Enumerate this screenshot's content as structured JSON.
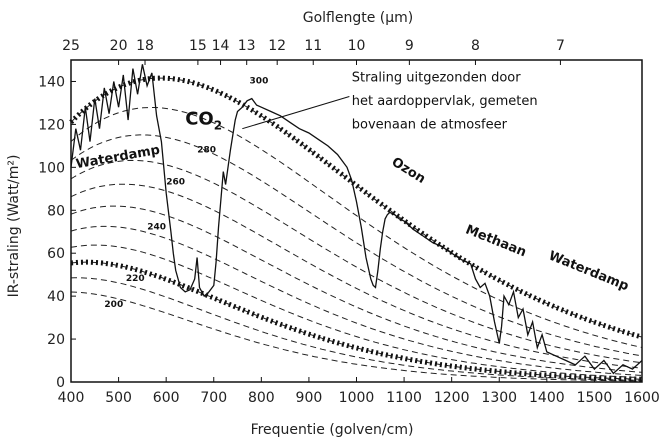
{
  "chart_data": {
    "type": "line",
    "xlabel": "Frequentie (golven/cm)",
    "ylabel": "IR-straling (Watt/m²)",
    "top_axis_label": "Golflengte (µm)",
    "xlim": [
      400,
      1600
    ],
    "ylim": [
      0,
      150
    ],
    "x_ticks": [
      400,
      500,
      600,
      700,
      800,
      900,
      1000,
      1100,
      1200,
      1300,
      1400,
      1500,
      1600
    ],
    "y_ticks": [
      0,
      20,
      40,
      60,
      80,
      100,
      120,
      140
    ],
    "top_ticks": [
      25,
      20,
      18,
      15,
      14,
      13,
      12,
      11,
      10,
      9,
      8,
      7
    ],
    "grid": false,
    "reference_curves": {
      "style": "dashed",
      "temperatures": [
        200,
        210,
        220,
        230,
        240,
        250,
        260,
        270,
        280,
        290,
        300
      ],
      "labeled": [
        {
          "label": "200",
          "x": 490,
          "y": 35
        },
        {
          "label": "220",
          "x": 535,
          "y": 47
        },
        {
          "label": "240",
          "x": 580,
          "y": 71
        },
        {
          "label": "260",
          "x": 620,
          "y": 92
        },
        {
          "label": "280",
          "x": 685,
          "y": 107
        },
        {
          "label": "300",
          "x": 795,
          "y": 139
        }
      ],
      "bold_dotted": [
        220,
        300
      ]
    },
    "spectrum": {
      "name": "Straling uitgezonden door het aardoppervlak, gemeten bovenaan de atmosfeer",
      "x": [
        400,
        410,
        420,
        430,
        440,
        450,
        460,
        470,
        480,
        490,
        500,
        510,
        520,
        530,
        540,
        550,
        560,
        570,
        580,
        590,
        600,
        610,
        615,
        620,
        625,
        630,
        640,
        650,
        660,
        665,
        670,
        680,
        690,
        700,
        705,
        710,
        715,
        720,
        725,
        730,
        735,
        740,
        745,
        750,
        760,
        770,
        780,
        790,
        800,
        820,
        840,
        860,
        880,
        900,
        920,
        940,
        960,
        980,
        990,
        1000,
        1010,
        1020,
        1030,
        1035,
        1040,
        1045,
        1050,
        1055,
        1060,
        1065,
        1070,
        1080,
        1090,
        1100,
        1120,
        1140,
        1160,
        1180,
        1200,
        1220,
        1240,
        1250,
        1260,
        1270,
        1280,
        1290,
        1300,
        1305,
        1310,
        1320,
        1330,
        1340,
        1350,
        1360,
        1370,
        1380,
        1390,
        1400,
        1420,
        1440,
        1460,
        1480,
        1500,
        1520,
        1540,
        1560,
        1580,
        1600
      ],
      "y": [
        100,
        118,
        108,
        128,
        112,
        132,
        118,
        137,
        125,
        140,
        128,
        143,
        122,
        146,
        134,
        148,
        138,
        144,
        124,
        112,
        88,
        70,
        60,
        52,
        48,
        44,
        42,
        43,
        48,
        58,
        44,
        40,
        42,
        45,
        56,
        72,
        85,
        98,
        92,
        100,
        108,
        115,
        122,
        126,
        128,
        131,
        132,
        129,
        128,
        126,
        124,
        121,
        118,
        116,
        113,
        110,
        106,
        100,
        94,
        84,
        72,
        58,
        48,
        45,
        44,
        52,
        62,
        70,
        76,
        78,
        79,
        78,
        76,
        75,
        71,
        68,
        65,
        63,
        60,
        57,
        55,
        48,
        44,
        46,
        40,
        28,
        18,
        26,
        40,
        36,
        42,
        30,
        34,
        22,
        28,
        16,
        22,
        14,
        12,
        10,
        8,
        12,
        6,
        10,
        4,
        8,
        6,
        10
      ]
    },
    "annotations": [
      {
        "text": "Straling uitgezonden door",
        "x": 990,
        "y": 140
      },
      {
        "text": "het aardoppervlak, gemeten",
        "x": 990,
        "y": 129
      },
      {
        "text": "bovenaan de atmosfeer",
        "x": 990,
        "y": 118
      },
      {
        "text": "CO",
        "sub": "2",
        "x": 640,
        "y": 120
      },
      {
        "text": "Waterdamp",
        "x": 500,
        "y": 103
      },
      {
        "text": "Ozon",
        "x": 1105,
        "y": 97
      },
      {
        "text": "Methaan",
        "x": 1290,
        "y": 64
      },
      {
        "text": "Waterdamp",
        "x": 1485,
        "y": 50
      }
    ]
  }
}
